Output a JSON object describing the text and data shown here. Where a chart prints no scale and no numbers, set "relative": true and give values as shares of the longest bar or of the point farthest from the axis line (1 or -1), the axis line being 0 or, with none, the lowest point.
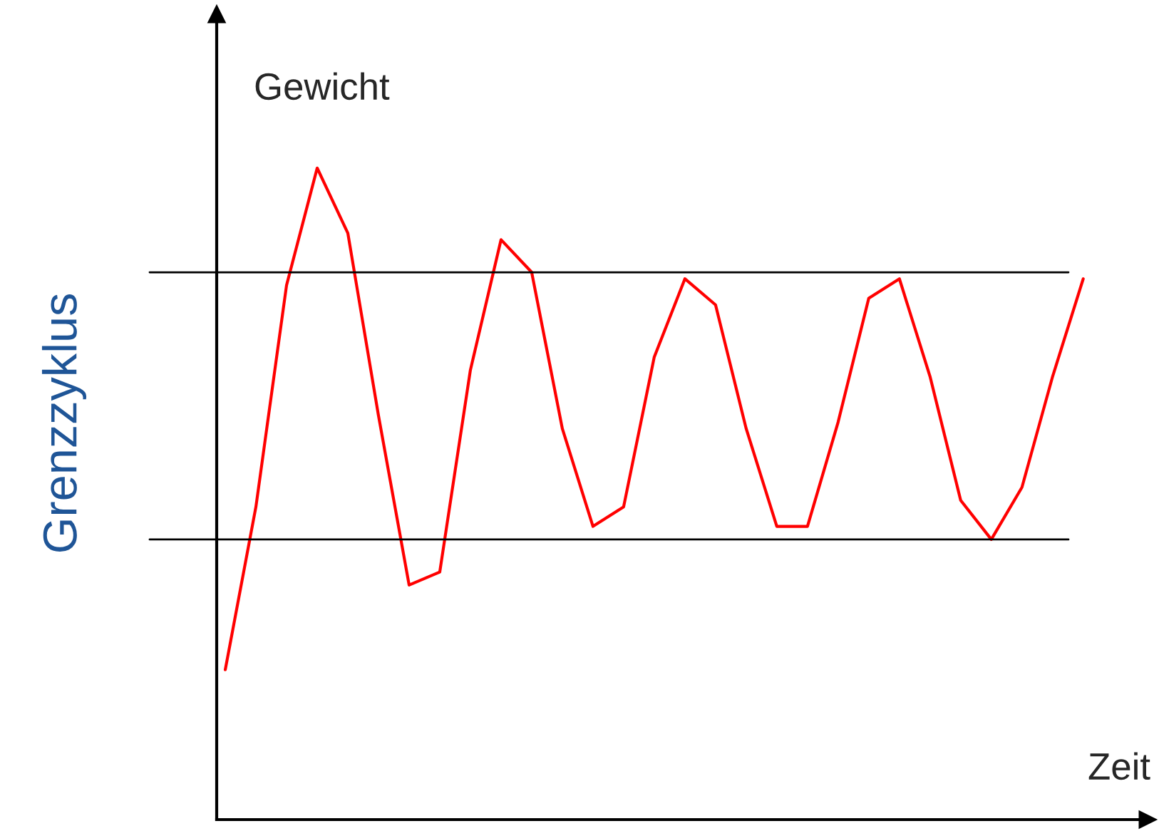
{
  "chart_data": {
    "type": "line",
    "relative": true,
    "title": "Grenzzyklus",
    "ylabel": "Gewicht",
    "xlabel": "Zeit",
    "categories": [
      null,
      null,
      null,
      null,
      null,
      null,
      null,
      null,
      null,
      null,
      null,
      null,
      null,
      null,
      null,
      null,
      null,
      null,
      null,
      null,
      null,
      null,
      null,
      null,
      null,
      null,
      null,
      null,
      null
    ],
    "series": [
      {
        "color": "#ff0000",
        "values": [
          0.23,
          0.48,
          0.82,
          1.0,
          0.9,
          0.62,
          0.36,
          0.38,
          0.69,
          0.89,
          0.84,
          0.6,
          0.45,
          0.48,
          0.71,
          0.83,
          0.79,
          0.6,
          0.45,
          0.45,
          0.61,
          0.8,
          0.83,
          0.68,
          0.49,
          0.43,
          0.51,
          0.68,
          0.83
        ]
      }
    ],
    "ref_lines": [
      {
        "axis": "y",
        "value": 0.84,
        "color": "#000000"
      },
      {
        "axis": "y",
        "value": 0.43,
        "color": "#000000"
      }
    ],
    "legend": false,
    "marker": "none",
    "line_style": "solid"
  }
}
